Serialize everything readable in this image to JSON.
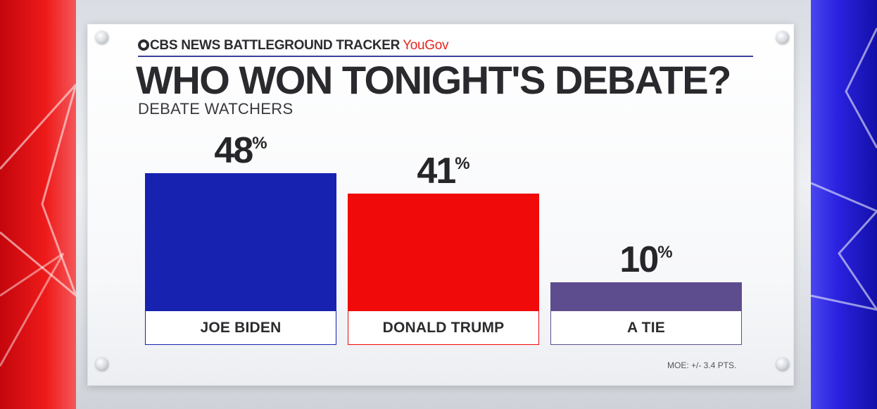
{
  "header": {
    "network": "CBS NEWS BATTLEGROUND TRACKER",
    "partner": "YouGov",
    "title": "WHO WON TONIGHT'S DEBATE?",
    "subtitle": "DEBATE WATCHERS",
    "moe": "MOE: +/- 3.4 PTS."
  },
  "chart_data": {
    "type": "bar",
    "title": "WHO WON TONIGHT'S DEBATE?",
    "subtitle": "DEBATE WATCHERS",
    "categories": [
      "JOE BIDEN",
      "DONALD TRUMP",
      "A TIE"
    ],
    "values": [
      48,
      41,
      10
    ],
    "value_suffix": "%",
    "colors": [
      "#1722b0",
      "#f00a0a",
      "#5e4d8e"
    ],
    "ylim": [
      0,
      48
    ],
    "grid": false
  }
}
